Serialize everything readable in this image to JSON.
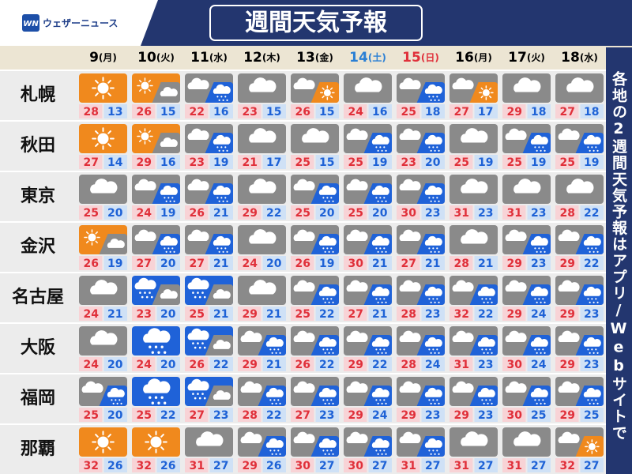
{
  "header": {
    "logo": "ウェザーニュース",
    "title": "週間天気予報"
  },
  "days": [
    {
      "date": "9",
      "weekday": "(月)",
      "color": "#000000"
    },
    {
      "date": "10",
      "weekday": "(火)",
      "color": "#000000"
    },
    {
      "date": "11",
      "weekday": "(水)",
      "color": "#000000"
    },
    {
      "date": "12",
      "weekday": "(木)",
      "color": "#000000"
    },
    {
      "date": "13",
      "weekday": "(金)",
      "color": "#000000"
    },
    {
      "date": "14",
      "weekday": "(土)",
      "color": "#2a7fd4"
    },
    {
      "date": "15",
      "weekday": "(日)",
      "color": "#e0303a"
    },
    {
      "date": "16",
      "weekday": "(月)",
      "color": "#000000"
    },
    {
      "date": "17",
      "weekday": "(火)",
      "color": "#000000"
    },
    {
      "date": "18",
      "weekday": "(水)",
      "color": "#000000"
    }
  ],
  "rows": [
    {
      "city": "札幌",
      "cells": [
        {
          "icon": "sunny",
          "high": 28,
          "low": 13
        },
        {
          "icon": "sunny-cloudy",
          "high": 26,
          "low": 15
        },
        {
          "icon": "cloudy-rain",
          "high": 22,
          "low": 16
        },
        {
          "icon": "cloudy",
          "high": 23,
          "low": 15
        },
        {
          "icon": "cloudy-sunny",
          "high": 26,
          "low": 15
        },
        {
          "icon": "cloudy",
          "high": 24,
          "low": 16
        },
        {
          "icon": "cloudy-rain",
          "high": 25,
          "low": 18
        },
        {
          "icon": "cloudy-sunny",
          "high": 27,
          "low": 17
        },
        {
          "icon": "cloudy",
          "high": 29,
          "low": 18
        },
        {
          "icon": "cloudy",
          "high": 27,
          "low": 18
        }
      ]
    },
    {
      "city": "秋田",
      "cells": [
        {
          "icon": "sunny",
          "high": 27,
          "low": 14
        },
        {
          "icon": "sunny-cloudy",
          "high": 29,
          "low": 16
        },
        {
          "icon": "cloudy-rain",
          "high": 23,
          "low": 19
        },
        {
          "icon": "cloudy",
          "high": 21,
          "low": 17
        },
        {
          "icon": "cloudy",
          "high": 25,
          "low": 15
        },
        {
          "icon": "cloudy-rain",
          "high": 25,
          "low": 19
        },
        {
          "icon": "cloudy-rain",
          "high": 23,
          "low": 20
        },
        {
          "icon": "cloudy",
          "high": 25,
          "low": 19
        },
        {
          "icon": "cloudy-rain",
          "high": 25,
          "low": 19
        },
        {
          "icon": "cloudy-rain",
          "high": 25,
          "low": 19
        }
      ]
    },
    {
      "city": "東京",
      "cells": [
        {
          "icon": "cloudy",
          "high": 25,
          "low": 20
        },
        {
          "icon": "cloudy-rain",
          "high": 24,
          "low": 19
        },
        {
          "icon": "cloudy-rain",
          "high": 26,
          "low": 21
        },
        {
          "icon": "cloudy",
          "high": 29,
          "low": 22
        },
        {
          "icon": "cloudy-rain",
          "high": 25,
          "low": 20
        },
        {
          "icon": "cloudy-rain",
          "high": 25,
          "low": 20
        },
        {
          "icon": "cloudy-rain",
          "high": 30,
          "low": 23
        },
        {
          "icon": "cloudy",
          "high": 31,
          "low": 23
        },
        {
          "icon": "cloudy",
          "high": 31,
          "low": 23
        },
        {
          "icon": "cloudy",
          "high": 28,
          "low": 22
        }
      ]
    },
    {
      "city": "金沢",
      "cells": [
        {
          "icon": "sunny-cloudy",
          "high": 26,
          "low": 19
        },
        {
          "icon": "cloudy-rain",
          "high": 27,
          "low": 20
        },
        {
          "icon": "cloudy-rain",
          "high": 27,
          "low": 21
        },
        {
          "icon": "cloudy",
          "high": 24,
          "low": 20
        },
        {
          "icon": "cloudy-rain",
          "high": 26,
          "low": 19
        },
        {
          "icon": "cloudy-rain",
          "high": 30,
          "low": 21
        },
        {
          "icon": "cloudy-rain",
          "high": 27,
          "low": 21
        },
        {
          "icon": "cloudy",
          "high": 28,
          "low": 21
        },
        {
          "icon": "cloudy-rain",
          "high": 29,
          "low": 23
        },
        {
          "icon": "cloudy-rain",
          "high": 29,
          "low": 22
        }
      ]
    },
    {
      "city": "名古屋",
      "cells": [
        {
          "icon": "cloudy",
          "high": 24,
          "low": 21
        },
        {
          "icon": "rain-cloudy",
          "high": 23,
          "low": 20
        },
        {
          "icon": "rain-cloudy",
          "high": 25,
          "low": 21
        },
        {
          "icon": "cloudy",
          "high": 29,
          "low": 21
        },
        {
          "icon": "cloudy-rain",
          "high": 25,
          "low": 22
        },
        {
          "icon": "cloudy-rain",
          "high": 27,
          "low": 21
        },
        {
          "icon": "cloudy-rain",
          "high": 28,
          "low": 23
        },
        {
          "icon": "cloudy-rain",
          "high": 32,
          "low": 22
        },
        {
          "icon": "cloudy-rain",
          "high": 29,
          "low": 24
        },
        {
          "icon": "cloudy-rain",
          "high": 29,
          "low": 23
        }
      ]
    },
    {
      "city": "大阪",
      "cells": [
        {
          "icon": "cloudy",
          "high": 24,
          "low": 20
        },
        {
          "icon": "rain",
          "high": 24,
          "low": 20
        },
        {
          "icon": "rain-cloudy",
          "high": 26,
          "low": 22
        },
        {
          "icon": "cloudy-rain",
          "high": 29,
          "low": 21
        },
        {
          "icon": "cloudy-rain",
          "high": 26,
          "low": 22
        },
        {
          "icon": "cloudy-rain",
          "high": 29,
          "low": 22
        },
        {
          "icon": "cloudy-rain",
          "high": 28,
          "low": 24
        },
        {
          "icon": "cloudy-rain",
          "high": 31,
          "low": 23
        },
        {
          "icon": "cloudy-rain",
          "high": 30,
          "low": 24
        },
        {
          "icon": "cloudy-rain",
          "high": 29,
          "low": 23
        }
      ]
    },
    {
      "city": "福岡",
      "cells": [
        {
          "icon": "cloudy-rain",
          "high": 25,
          "low": 20
        },
        {
          "icon": "rain",
          "high": 25,
          "low": 22
        },
        {
          "icon": "rain-cloudy",
          "high": 27,
          "low": 23
        },
        {
          "icon": "cloudy-rain",
          "high": 28,
          "low": 22
        },
        {
          "icon": "cloudy-rain",
          "high": 27,
          "low": 23
        },
        {
          "icon": "cloudy-rain",
          "high": 29,
          "low": 24
        },
        {
          "icon": "cloudy-rain",
          "high": 29,
          "low": 23
        },
        {
          "icon": "cloudy-rain",
          "high": 29,
          "low": 23
        },
        {
          "icon": "cloudy-rain",
          "high": 30,
          "low": 25
        },
        {
          "icon": "cloudy-rain",
          "high": 29,
          "low": 25
        }
      ]
    },
    {
      "city": "那覇",
      "cells": [
        {
          "icon": "sunny",
          "high": 32,
          "low": 26
        },
        {
          "icon": "sunny",
          "high": 32,
          "low": 26
        },
        {
          "icon": "cloudy",
          "high": 31,
          "low": 27
        },
        {
          "icon": "cloudy-rain",
          "high": 29,
          "low": 26
        },
        {
          "icon": "cloudy-rain",
          "high": 30,
          "low": 27
        },
        {
          "icon": "cloudy-rain",
          "high": 30,
          "low": 27
        },
        {
          "icon": "cloudy-rain",
          "high": 31,
          "low": 27
        },
        {
          "icon": "cloudy",
          "high": 31,
          "low": 27
        },
        {
          "icon": "cloudy",
          "high": 31,
          "low": 27
        },
        {
          "icon": "cloudy-sunny",
          "high": 32,
          "low": 27
        }
      ]
    }
  ],
  "side_note": "各地の2週間天気予報はアプリ/Webサイトで"
}
